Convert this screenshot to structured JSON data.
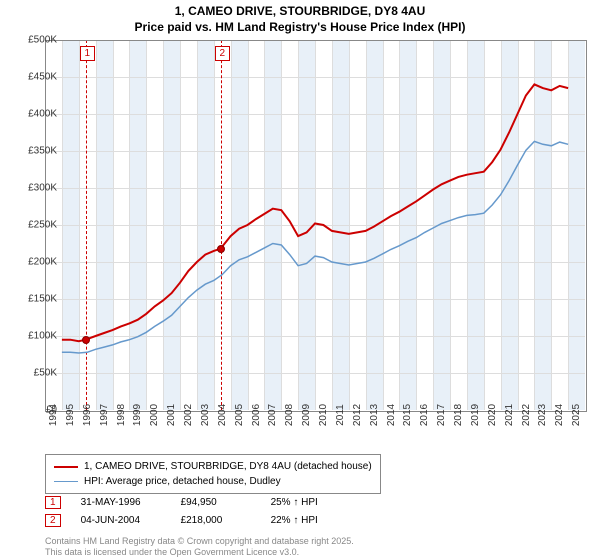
{
  "title_line1": "1, CAMEO DRIVE, STOURBRIDGE, DY8 4AU",
  "title_line2": "Price paid vs. HM Land Registry's House Price Index (HPI)",
  "chart": {
    "type": "line",
    "x_years": [
      1994,
      1995,
      1996,
      1997,
      1998,
      1999,
      2000,
      2001,
      2002,
      2003,
      2004,
      2005,
      2006,
      2007,
      2008,
      2009,
      2010,
      2011,
      2012,
      2013,
      2014,
      2015,
      2016,
      2017,
      2018,
      2019,
      2020,
      2021,
      2022,
      2023,
      2024,
      2025
    ],
    "x_range": [
      1994,
      2026
    ],
    "ylim": [
      0,
      500000
    ],
    "ytick_step": 50000,
    "ytick_labels": [
      "£0",
      "£50K",
      "£100K",
      "£150K",
      "£200K",
      "£250K",
      "£300K",
      "£350K",
      "£400K",
      "£450K",
      "£500K"
    ],
    "background_color": "#ffffff",
    "grid_color": "#dddddd",
    "band_color": "#e8f0f8",
    "band_years": [
      1995,
      1997,
      1999,
      2001,
      2003,
      2005,
      2007,
      2009,
      2011,
      2013,
      2015,
      2017,
      2019,
      2021,
      2023,
      2025
    ],
    "series": [
      {
        "name": "1, CAMEO DRIVE, STOURBRIDGE, DY8 4AU (detached house)",
        "color": "#cc0000",
        "line_width": 2,
        "data": [
          [
            1995.0,
            95000
          ],
          [
            1995.5,
            95000
          ],
          [
            1996.0,
            93000
          ],
          [
            1996.4,
            94950
          ],
          [
            1997.0,
            100000
          ],
          [
            1997.5,
            104000
          ],
          [
            1998.0,
            108000
          ],
          [
            1998.5,
            113000
          ],
          [
            1999.0,
            117000
          ],
          [
            1999.5,
            122000
          ],
          [
            2000.0,
            130000
          ],
          [
            2000.5,
            140000
          ],
          [
            2001.0,
            148000
          ],
          [
            2001.5,
            158000
          ],
          [
            2002.0,
            172000
          ],
          [
            2002.5,
            188000
          ],
          [
            2003.0,
            200000
          ],
          [
            2003.5,
            210000
          ],
          [
            2004.0,
            215000
          ],
          [
            2004.4,
            218000
          ],
          [
            2005.0,
            235000
          ],
          [
            2005.5,
            245000
          ],
          [
            2006.0,
            250000
          ],
          [
            2006.5,
            258000
          ],
          [
            2007.0,
            265000
          ],
          [
            2007.5,
            272000
          ],
          [
            2008.0,
            270000
          ],
          [
            2008.5,
            255000
          ],
          [
            2009.0,
            235000
          ],
          [
            2009.5,
            240000
          ],
          [
            2010.0,
            252000
          ],
          [
            2010.5,
            250000
          ],
          [
            2011.0,
            242000
          ],
          [
            2011.5,
            240000
          ],
          [
            2012.0,
            238000
          ],
          [
            2012.5,
            240000
          ],
          [
            2013.0,
            242000
          ],
          [
            2013.5,
            248000
          ],
          [
            2014.0,
            255000
          ],
          [
            2014.5,
            262000
          ],
          [
            2015.0,
            268000
          ],
          [
            2015.5,
            275000
          ],
          [
            2016.0,
            282000
          ],
          [
            2016.5,
            290000
          ],
          [
            2017.0,
            298000
          ],
          [
            2017.5,
            305000
          ],
          [
            2018.0,
            310000
          ],
          [
            2018.5,
            315000
          ],
          [
            2019.0,
            318000
          ],
          [
            2019.5,
            320000
          ],
          [
            2020.0,
            322000
          ],
          [
            2020.5,
            335000
          ],
          [
            2021.0,
            352000
          ],
          [
            2021.5,
            375000
          ],
          [
            2022.0,
            400000
          ],
          [
            2022.5,
            425000
          ],
          [
            2023.0,
            440000
          ],
          [
            2023.5,
            435000
          ],
          [
            2024.0,
            432000
          ],
          [
            2024.5,
            438000
          ],
          [
            2025.0,
            435000
          ]
        ]
      },
      {
        "name": "HPI: Average price, detached house, Dudley",
        "color": "#6699cc",
        "line_width": 1.5,
        "data": [
          [
            1995.0,
            78000
          ],
          [
            1995.5,
            78000
          ],
          [
            1996.0,
            77000
          ],
          [
            1996.5,
            78000
          ],
          [
            1997.0,
            82000
          ],
          [
            1997.5,
            85000
          ],
          [
            1998.0,
            88000
          ],
          [
            1998.5,
            92000
          ],
          [
            1999.0,
            95000
          ],
          [
            1999.5,
            99000
          ],
          [
            2000.0,
            105000
          ],
          [
            2000.5,
            113000
          ],
          [
            2001.0,
            120000
          ],
          [
            2001.5,
            128000
          ],
          [
            2002.0,
            140000
          ],
          [
            2002.5,
            152000
          ],
          [
            2003.0,
            162000
          ],
          [
            2003.5,
            170000
          ],
          [
            2004.0,
            175000
          ],
          [
            2004.5,
            183000
          ],
          [
            2005.0,
            195000
          ],
          [
            2005.5,
            203000
          ],
          [
            2006.0,
            207000
          ],
          [
            2006.5,
            213000
          ],
          [
            2007.0,
            219000
          ],
          [
            2007.5,
            225000
          ],
          [
            2008.0,
            223000
          ],
          [
            2008.5,
            210000
          ],
          [
            2009.0,
            195000
          ],
          [
            2009.5,
            198000
          ],
          [
            2010.0,
            208000
          ],
          [
            2010.5,
            206000
          ],
          [
            2011.0,
            200000
          ],
          [
            2011.5,
            198000
          ],
          [
            2012.0,
            196000
          ],
          [
            2012.5,
            198000
          ],
          [
            2013.0,
            200000
          ],
          [
            2013.5,
            205000
          ],
          [
            2014.0,
            211000
          ],
          [
            2014.5,
            217000
          ],
          [
            2015.0,
            222000
          ],
          [
            2015.5,
            228000
          ],
          [
            2016.0,
            233000
          ],
          [
            2016.5,
            240000
          ],
          [
            2017.0,
            246000
          ],
          [
            2017.5,
            252000
          ],
          [
            2018.0,
            256000
          ],
          [
            2018.5,
            260000
          ],
          [
            2019.0,
            263000
          ],
          [
            2019.5,
            264000
          ],
          [
            2020.0,
            266000
          ],
          [
            2020.5,
            277000
          ],
          [
            2021.0,
            291000
          ],
          [
            2021.5,
            310000
          ],
          [
            2022.0,
            331000
          ],
          [
            2022.5,
            351000
          ],
          [
            2023.0,
            363000
          ],
          [
            2023.5,
            359000
          ],
          [
            2024.0,
            357000
          ],
          [
            2024.5,
            362000
          ],
          [
            2025.0,
            359000
          ]
        ]
      }
    ],
    "markers": [
      {
        "n": "1",
        "year": 1996.4,
        "value": 94950
      },
      {
        "n": "2",
        "year": 2004.4,
        "value": 218000
      }
    ]
  },
  "legend": {
    "items": [
      {
        "color": "#cc0000",
        "width": 2,
        "label": "1, CAMEO DRIVE, STOURBRIDGE, DY8 4AU (detached house)"
      },
      {
        "color": "#6699cc",
        "width": 1.5,
        "label": "HPI: Average price, detached house, Dudley"
      }
    ]
  },
  "sales": [
    {
      "n": "1",
      "date": "31-MAY-1996",
      "price": "£94,950",
      "pct": "25% ↑ HPI"
    },
    {
      "n": "2",
      "date": "04-JUN-2004",
      "price": "£218,000",
      "pct": "22% ↑ HPI"
    }
  ],
  "attrib_line1": "Contains HM Land Registry data © Crown copyright and database right 2025.",
  "attrib_line2": "This data is licensed under the Open Government Licence v3.0."
}
